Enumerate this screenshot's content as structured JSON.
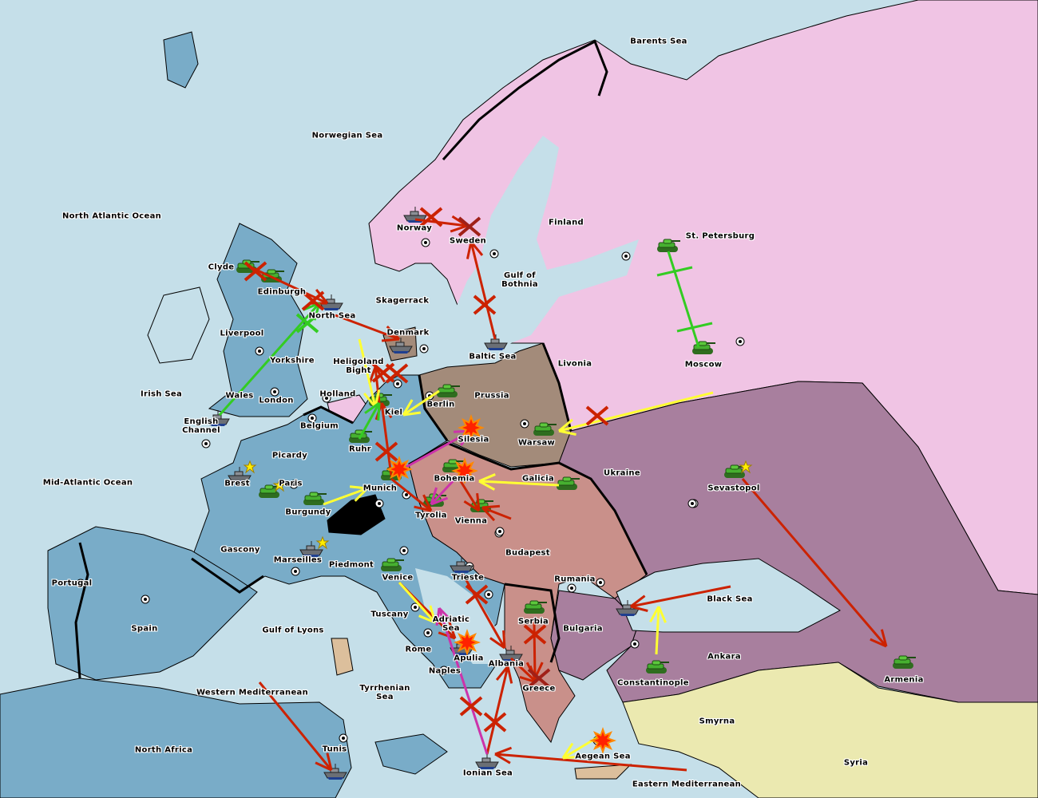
{
  "game": "Diplomacy",
  "colors": {
    "sea": "#c5dfe9",
    "west_powers": "#79acc8",
    "russia": "#f0c4e4",
    "germany_east": "#a38b7a",
    "austria": "#c9908a",
    "turkey": "#a87f9e",
    "neutral_east": "#ebe9b0",
    "neutral_islands": "#dcbf9c",
    "switzerland": "#000000",
    "order_failed": "#cc2200",
    "order_move": "#ffff33",
    "order_support": "#33cc22",
    "order_convoy": "#cc33aa"
  },
  "provinces": [
    "Barents Sea",
    "Norwegian Sea",
    "North Atlantic Ocean",
    "Norway",
    "Sweden",
    "Finland",
    "St. Petersburg",
    "Gulf of Bothnia",
    "Clyde",
    "Edinburgh",
    "North Sea",
    "Skagerrack",
    "Denmark",
    "Baltic Sea",
    "Livonia",
    "Moscow",
    "Liverpool",
    "Yorkshire",
    "Heligoland Bight",
    "Irish Sea",
    "Wales",
    "London",
    "Holland",
    "Prussia",
    "Berlin",
    "Kiel",
    "English Channel",
    "Belgium",
    "Silesia",
    "Warsaw",
    "Ruhr",
    "Picardy",
    "Ukraine",
    "Galicia",
    "Bohemia",
    "Sevastopol",
    "Mid-Atlantic Ocean",
    "Brest",
    "Paris",
    "Munich",
    "Burgundy",
    "Tyrolia",
    "Vienna",
    "Gascony",
    "Budapest",
    "Marseilles",
    "Piedmont",
    "Portugal",
    "Venice",
    "Trieste",
    "Rumania",
    "Black Sea",
    "Tuscany",
    "Adriatic Sea",
    "Serbia",
    "Bulgaria",
    "Spain",
    "Gulf of Lyons",
    "Rome",
    "Apulia",
    "Albania",
    "Ankara",
    "Armenia",
    "Naples",
    "Constantinople",
    "Greece",
    "Western Mediterranean",
    "Tyrrhenian Sea",
    "Smyrna",
    "North Africa",
    "Tunis",
    "Aegean Sea",
    "Syria",
    "Ionian Sea",
    "Eastern Mediterranean"
  ],
  "units": [
    {
      "type": "fleet",
      "province": "Norway"
    },
    {
      "type": "army",
      "province": "Clyde"
    },
    {
      "type": "army",
      "province": "Edinburgh"
    },
    {
      "type": "fleet",
      "province": "North Sea"
    },
    {
      "type": "fleet",
      "province": "Denmark"
    },
    {
      "type": "fleet",
      "province": "Baltic Sea"
    },
    {
      "type": "fleet",
      "province": "English Channel"
    },
    {
      "type": "fleet",
      "province": "Brest"
    },
    {
      "type": "fleet",
      "province": "Marseilles"
    },
    {
      "type": "fleet",
      "province": "Trieste"
    },
    {
      "type": "fleet",
      "province": "Apulia"
    },
    {
      "type": "fleet",
      "province": "Albania"
    },
    {
      "type": "fleet",
      "province": "Black Sea"
    },
    {
      "type": "fleet",
      "province": "Ionian Sea"
    },
    {
      "type": "fleet",
      "province": "Tunis"
    },
    {
      "type": "army",
      "province": "St. Petersburg"
    },
    {
      "type": "army",
      "province": "Moscow"
    },
    {
      "type": "army",
      "province": "Berlin"
    },
    {
      "type": "army",
      "province": "Kiel"
    },
    {
      "type": "army",
      "province": "Ruhr"
    },
    {
      "type": "army",
      "province": "Munich"
    },
    {
      "type": "army",
      "province": "Warsaw"
    },
    {
      "type": "army",
      "province": "Bohemia"
    },
    {
      "type": "army",
      "province": "Galicia"
    },
    {
      "type": "army",
      "province": "Tyrolia"
    },
    {
      "type": "army",
      "province": "Vienna"
    },
    {
      "type": "army",
      "province": "Burgundy"
    },
    {
      "type": "army",
      "province": "Paris"
    },
    {
      "type": "army",
      "province": "Venice"
    },
    {
      "type": "army",
      "province": "Serbia"
    },
    {
      "type": "army",
      "province": "Sevastopol"
    },
    {
      "type": "army",
      "province": "Constantinople"
    },
    {
      "type": "army",
      "province": "Armenia"
    }
  ]
}
